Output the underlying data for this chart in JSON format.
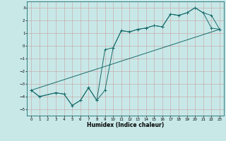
{
  "xlabel": "Humidex (Indice chaleur)",
  "xlim": [
    -0.5,
    23.5
  ],
  "ylim": [
    -5.5,
    3.5
  ],
  "yticks": [
    -5,
    -4,
    -3,
    -2,
    -1,
    0,
    1,
    2,
    3
  ],
  "xticks": [
    0,
    1,
    2,
    3,
    4,
    5,
    6,
    7,
    8,
    9,
    10,
    11,
    12,
    13,
    14,
    15,
    16,
    17,
    18,
    19,
    20,
    21,
    22,
    23
  ],
  "bg_color": "#c8e8e8",
  "line_color": "#1a6b6b",
  "line1_x": [
    0,
    1,
    3,
    4,
    5,
    6,
    7,
    8,
    9,
    10,
    11,
    12,
    13,
    14,
    15,
    16,
    17,
    18,
    19,
    20,
    21,
    22,
    23
  ],
  "line1_y": [
    -3.5,
    -4.0,
    -3.7,
    -3.8,
    -4.7,
    -4.3,
    -3.3,
    -4.3,
    -0.3,
    -0.15,
    1.2,
    1.1,
    1.3,
    1.4,
    1.6,
    1.5,
    2.5,
    2.4,
    2.6,
    3.0,
    2.6,
    1.4,
    1.3
  ],
  "line2_x": [
    0,
    1,
    3,
    4,
    5,
    6,
    7,
    8,
    9,
    10,
    11,
    12,
    13,
    14,
    15,
    16,
    17,
    18,
    19,
    20,
    21,
    22,
    23
  ],
  "line2_y": [
    -3.5,
    -4.0,
    -3.7,
    -3.8,
    -4.7,
    -4.3,
    -3.3,
    -4.3,
    -3.5,
    -0.15,
    1.2,
    1.1,
    1.3,
    1.4,
    1.6,
    1.5,
    2.5,
    2.4,
    2.6,
    3.0,
    2.6,
    2.4,
    1.3
  ],
  "line3_x": [
    0,
    23
  ],
  "line3_y": [
    -3.5,
    1.3
  ]
}
